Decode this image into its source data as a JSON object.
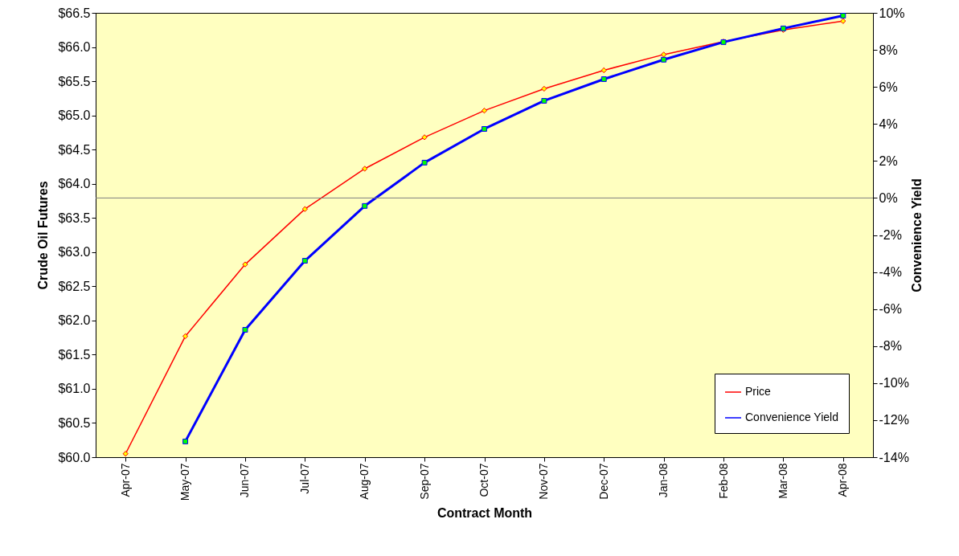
{
  "chart_data": {
    "type": "line",
    "xlabel": "Contract Month",
    "ylabel": "Crude Oil Futures",
    "y2label": "Convenience Yield",
    "categories": [
      "Apr-07",
      "May-07",
      "Jun-07",
      "Jul-07",
      "Aug-07",
      "Sep-07",
      "Oct-07",
      "Nov-07",
      "Dec-07",
      "Jan-08",
      "Feb-08",
      "Mar-08",
      "Apr-08"
    ],
    "series": [
      {
        "name": "Price",
        "color": "#ff0000",
        "marker": "diamond",
        "values": [
          60.05,
          61.77,
          62.82,
          63.63,
          64.22,
          64.68,
          65.07,
          65.39,
          65.66,
          65.89,
          66.08,
          66.25,
          66.38
        ]
      },
      {
        "name": "Convenience Yield",
        "color": "#0000ff",
        "marker": "square",
        "axis": "y2",
        "values": [
          null,
          -13.15,
          -7.12,
          -3.39,
          -0.43,
          1.91,
          3.73,
          5.25,
          6.42,
          7.47,
          8.42,
          9.16,
          9.85
        ]
      }
    ],
    "ylim": [
      60,
      66.5
    ],
    "yticks": [
      {
        "value": 60,
        "label": "$60.0"
      },
      {
        "value": 60.5,
        "label": "$60.5"
      },
      {
        "value": 61,
        "label": "$61.0"
      },
      {
        "value": 61.5,
        "label": "$61.5"
      },
      {
        "value": 62,
        "label": "$62.0"
      },
      {
        "value": 62.5,
        "label": "$62.5"
      },
      {
        "value": 63,
        "label": "$63.0"
      },
      {
        "value": 63.5,
        "label": "$63.5"
      },
      {
        "value": 64,
        "label": "$64.0"
      },
      {
        "value": 64.5,
        "label": "$64.5"
      },
      {
        "value": 65,
        "label": "$65.0"
      },
      {
        "value": 65.5,
        "label": "$65.5"
      },
      {
        "value": 66,
        "label": "$66.0"
      },
      {
        "value": 66.5,
        "label": "$66.5"
      }
    ],
    "y2lim": [
      -14,
      10
    ],
    "y2ticks": [
      {
        "value": -14,
        "label": "-14%"
      },
      {
        "value": -12,
        "label": "-12%"
      },
      {
        "value": -10,
        "label": "-10%"
      },
      {
        "value": -8,
        "label": "-8%"
      },
      {
        "value": -6,
        "label": "-6%"
      },
      {
        "value": -4,
        "label": "-4%"
      },
      {
        "value": -2,
        "label": "-2%"
      },
      {
        "value": 0,
        "label": "0%"
      },
      {
        "value": 2,
        "label": "2%"
      },
      {
        "value": 4,
        "label": "4%"
      },
      {
        "value": 6,
        "label": "6%"
      },
      {
        "value": 8,
        "label": "8%"
      },
      {
        "value": 10,
        "label": "10%"
      }
    ],
    "ref_lines": [
      {
        "axis": "y2",
        "value": 0,
        "color": "#808080"
      }
    ],
    "grid": false,
    "legend": "bottom right",
    "line_style": "solid"
  }
}
